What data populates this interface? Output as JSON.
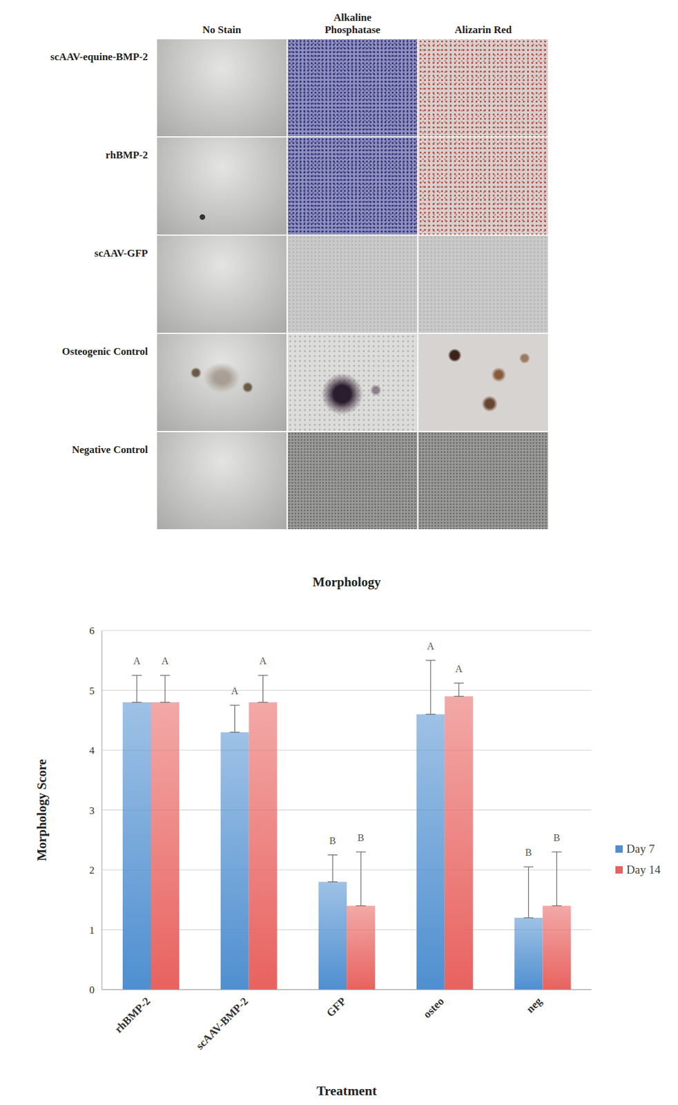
{
  "figure": {
    "columns": [
      "No Stain",
      "Alkaline Phosphatase",
      "Alizarin Red"
    ],
    "rows": [
      "scAAV-equine-BMP-2",
      "rhBMP-2",
      "scAAV-GFP",
      "Osteogenic Control",
      "Negative Control"
    ]
  },
  "chart_data": {
    "type": "bar",
    "title": "Morphology",
    "x_label": "Treatment",
    "y_label": "Morphology Score",
    "categories": [
      "rhBMP-2",
      "scAAV-BMP-2",
      "GFP",
      "osteo",
      "neg"
    ],
    "series": [
      {
        "name": "Day 7",
        "color": "#4f8fd0",
        "values": [
          4.8,
          4.3,
          1.8,
          4.6,
          1.2
        ],
        "errors": [
          0.45,
          0.45,
          0.45,
          0.9,
          0.85
        ],
        "letters": [
          "A",
          "A",
          "B",
          "A",
          "B"
        ]
      },
      {
        "name": "Day 14",
        "color": "#e8625f",
        "values": [
          4.8,
          4.8,
          1.4,
          4.9,
          1.4
        ],
        "errors": [
          0.45,
          0.45,
          0.9,
          0.22,
          0.9
        ],
        "letters": [
          "A",
          "A",
          "B",
          "A",
          "B"
        ]
      }
    ],
    "ylim": [
      0,
      6
    ],
    "yticks": [
      0,
      1,
      2,
      3,
      4,
      5,
      6
    ],
    "grid": true,
    "legend": "right"
  }
}
